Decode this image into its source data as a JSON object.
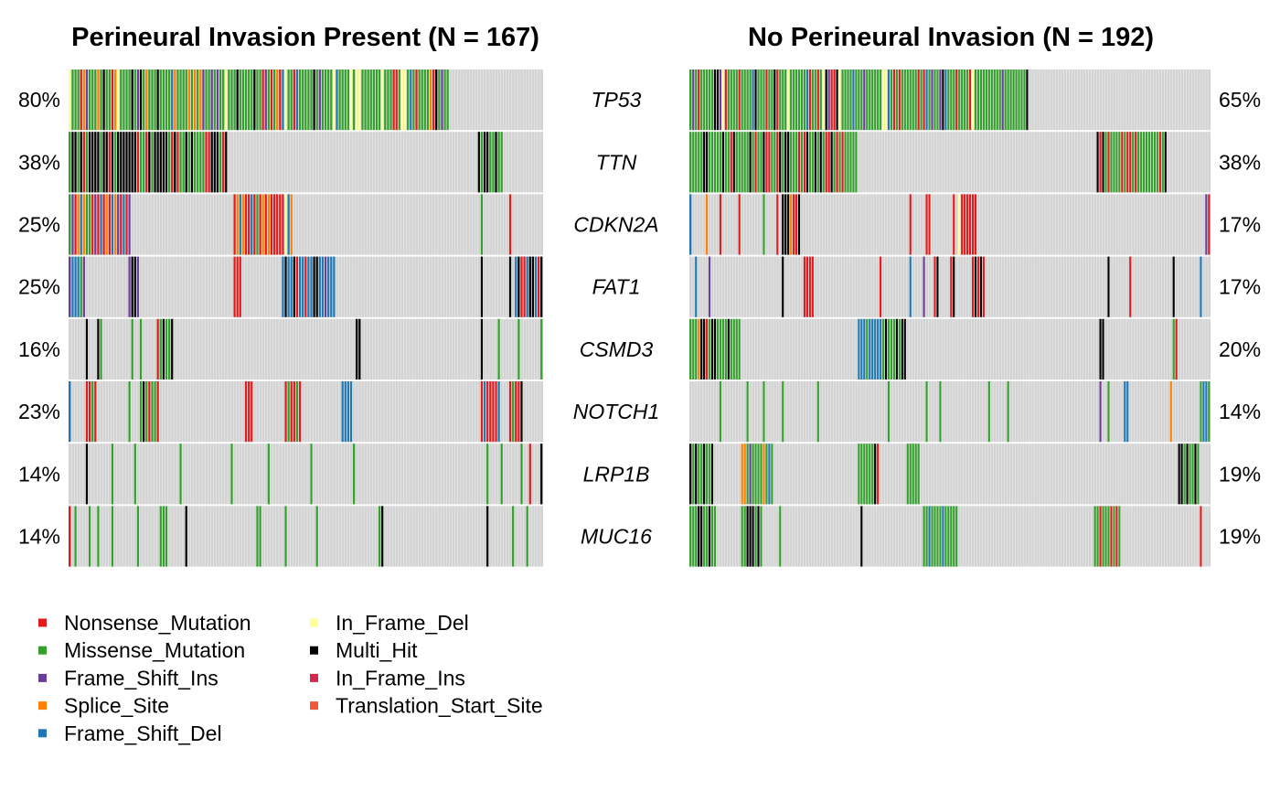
{
  "chart_data": {
    "type": "heatmap",
    "genes": [
      "TP53",
      "TTN",
      "CDKN2A",
      "FAT1",
      "CSMD3",
      "NOTCH1",
      "LRP1B",
      "MUC16"
    ],
    "background_color": "#d3d3d3",
    "colors": {
      "Nonsense_Mutation": "#e31a1c",
      "Missense_Mutation": "#33a02c",
      "Frame_Shift_Ins": "#6a3d9a",
      "Splice_Site": "#ff7f00",
      "Frame_Shift_Del": "#1f78b4",
      "In_Frame_Del": "#ffff99",
      "Multi_Hit": "#000000",
      "In_Frame_Ins": "#d0284e",
      "Translation_Start_Site": "#f0583a"
    },
    "panels": [
      {
        "title": "Perineural Invasion Present (N = 167)",
        "n_samples": 167,
        "percent_labels": [
          "80%",
          "38%",
          "25%",
          "25%",
          "16%",
          "23%",
          "14%",
          "14%"
        ],
        "rows": [
          {
            "gene": "TP53",
            "segments": [
              [
                0,
                133,
                "Missense_Mutation",
                "Nonsense_Mutation|Multi_Hit|Frame_Shift_Del|Frame_Shift_Ins|Splice_Site|In_Frame_Del"
              ]
            ]
          },
          {
            "gene": "TTN",
            "segments": [
              [
                0,
                55,
                "Multi_Hit",
                "Missense_Mutation|Nonsense_Mutation"
              ],
              [
                144,
                152,
                "Multi_Hit",
                "Missense_Mutation"
              ]
            ]
          },
          {
            "gene": "CDKN2A",
            "segments": [
              [
                0,
                21,
                "Nonsense_Mutation",
                "Splice_Site|Frame_Shift_Del|Missense_Mutation|Frame_Shift_Ins"
              ],
              [
                58,
                78,
                "Nonsense_Mutation",
                "In_Frame_Del|Frame_Shift_Del|Splice_Site|Missense_Mutation"
              ],
              [
                145,
                145,
                "Missense_Mutation",
                ""
              ],
              [
                155,
                155,
                "Nonsense_Mutation",
                ""
              ]
            ]
          },
          {
            "gene": "FAT1",
            "segments": [
              [
                0,
                5,
                "Frame_Shift_Del",
                "Frame_Shift_Ins|Missense_Mutation"
              ],
              [
                21,
                24,
                "Frame_Shift_Ins",
                "Multi_Hit"
              ],
              [
                58,
                60,
                "Nonsense_Mutation",
                "Multi_Hit"
              ],
              [
                75,
                93,
                "Frame_Shift_Del",
                "Frame_Shift_Ins|Nonsense_Mutation|Multi_Hit"
              ],
              [
                145,
                145,
                "Multi_Hit",
                ""
              ],
              [
                155,
                155,
                "Multi_Hit",
                ""
              ],
              [
                157,
                166,
                "Multi_Hit",
                "Frame_Shift_Del|Nonsense_Mutation"
              ]
            ]
          },
          {
            "gene": "CSMD3",
            "segments": [
              [
                6,
                6,
                "Multi_Hit",
                ""
              ],
              [
                10,
                11,
                "Missense_Mutation",
                "Multi_Hit"
              ],
              [
                22,
                22,
                "Missense_Mutation",
                ""
              ],
              [
                25,
                25,
                "Missense_Mutation",
                ""
              ],
              [
                31,
                36,
                "Missense_Mutation",
                "Multi_Hit|Nonsense_Mutation"
              ],
              [
                101,
                102,
                "Multi_Hit",
                ""
              ],
              [
                145,
                145,
                "Multi_Hit",
                ""
              ],
              [
                151,
                151,
                "Missense_Mutation",
                ""
              ],
              [
                158,
                158,
                "Missense_Mutation",
                ""
              ],
              [
                166,
                166,
                "Missense_Mutation",
                ""
              ]
            ]
          },
          {
            "gene": "NOTCH1",
            "segments": [
              [
                0,
                0,
                "Frame_Shift_Del",
                ""
              ],
              [
                6,
                9,
                "Missense_Mutation",
                "Nonsense_Mutation"
              ],
              [
                21,
                21,
                "Missense_Mutation",
                ""
              ],
              [
                25,
                31,
                "Missense_Mutation",
                "Multi_Hit|Nonsense_Mutation"
              ],
              [
                62,
                64,
                "Nonsense_Mutation",
                "Frame_Shift_Del"
              ],
              [
                76,
                81,
                "Nonsense_Mutation",
                "Frame_Shift_Ins|Missense_Mutation"
              ],
              [
                96,
                99,
                "Frame_Shift_Del",
                "Missense_Mutation"
              ],
              [
                145,
                151,
                "Nonsense_Mutation",
                "Frame_Shift_Del|Missense_Mutation"
              ],
              [
                155,
                159,
                "Nonsense_Mutation",
                "Missense_Mutation|Multi_Hit"
              ]
            ]
          },
          {
            "gene": "LRP1B",
            "segments": [
              [
                6,
                6,
                "Multi_Hit",
                ""
              ],
              [
                15,
                15,
                "Missense_Mutation",
                ""
              ],
              [
                23,
                23,
                "Missense_Mutation",
                ""
              ],
              [
                39,
                39,
                "Missense_Mutation",
                ""
              ],
              [
                57,
                57,
                "Missense_Mutation",
                ""
              ],
              [
                70,
                70,
                "Missense_Mutation",
                ""
              ],
              [
                85,
                85,
                "Missense_Mutation",
                ""
              ],
              [
                100,
                100,
                "Missense_Mutation",
                ""
              ],
              [
                147,
                147,
                "Missense_Mutation",
                ""
              ],
              [
                152,
                152,
                "Missense_Mutation",
                ""
              ],
              [
                159,
                159,
                "Missense_Mutation",
                ""
              ],
              [
                162,
                162,
                "Nonsense_Mutation",
                ""
              ],
              [
                166,
                166,
                "Multi_Hit",
                ""
              ]
            ]
          },
          {
            "gene": "MUC16",
            "segments": [
              [
                0,
                0,
                "Nonsense_Mutation",
                ""
              ],
              [
                2,
                2,
                "Missense_Mutation",
                ""
              ],
              [
                7,
                7,
                "Missense_Mutation",
                ""
              ],
              [
                10,
                10,
                "Missense_Mutation",
                ""
              ],
              [
                15,
                15,
                "Missense_Mutation",
                ""
              ],
              [
                24,
                24,
                "Missense_Mutation",
                ""
              ],
              [
                32,
                34,
                "Missense_Mutation",
                ""
              ],
              [
                41,
                41,
                "Multi_Hit",
                ""
              ],
              [
                66,
                67,
                "Missense_Mutation",
                ""
              ],
              [
                76,
                76,
                "Missense_Mutation",
                ""
              ],
              [
                87,
                87,
                "Missense_Mutation",
                ""
              ],
              [
                109,
                110,
                "Multi_Hit",
                "Missense_Mutation"
              ],
              [
                147,
                147,
                "Multi_Hit",
                ""
              ],
              [
                156,
                156,
                "Missense_Mutation",
                ""
              ],
              [
                161,
                161,
                "Missense_Mutation",
                ""
              ]
            ]
          }
        ]
      },
      {
        "title": "No Perineural Invasion (N = 192)",
        "n_samples": 192,
        "percent_labels": [
          "65%",
          "38%",
          "17%",
          "17%",
          "20%",
          "14%",
          "19%",
          "19%"
        ],
        "rows": [
          {
            "gene": "TP53",
            "segments": [
              [
                0,
                124,
                "Missense_Mutation",
                "Multi_Hit|Nonsense_Mutation|Frame_Shift_Del|Frame_Shift_Ins|In_Frame_Del"
              ]
            ]
          },
          {
            "gene": "TTN",
            "segments": [
              [
                0,
                61,
                "Missense_Mutation",
                "Multi_Hit|Nonsense_Mutation"
              ],
              [
                150,
                175,
                "Missense_Mutation",
                "Multi_Hit|Nonsense_Mutation"
              ]
            ]
          },
          {
            "gene": "CDKN2A",
            "segments": [
              [
                0,
                0,
                "Frame_Shift_Del",
                ""
              ],
              [
                6,
                6,
                "Splice_Site",
                ""
              ],
              [
                11,
                11,
                "Nonsense_Mutation",
                ""
              ],
              [
                18,
                18,
                "Nonsense_Mutation",
                ""
              ],
              [
                27,
                27,
                "Missense_Mutation",
                ""
              ],
              [
                32,
                32,
                "Nonsense_Mutation",
                ""
              ],
              [
                34,
                40,
                "Multi_Hit",
                "Nonsense_Mutation|Frame_Shift_Del|Missense_Mutation|Splice_Site"
              ],
              [
                81,
                81,
                "Nonsense_Mutation",
                ""
              ],
              [
                87,
                88,
                "Nonsense_Mutation",
                ""
              ],
              [
                97,
                97,
                "Nonsense_Mutation",
                ""
              ],
              [
                99,
                105,
                "Nonsense_Mutation",
                "Frame_Shift_Del|Splice_Site|In_Frame_Del|Frame_Shift_Ins"
              ],
              [
                190,
                191,
                "Nonsense_Mutation",
                "Frame_Shift_Ins"
              ]
            ]
          },
          {
            "gene": "FAT1",
            "segments": [
              [
                2,
                2,
                "Frame_Shift_Del",
                ""
              ],
              [
                7,
                7,
                "Frame_Shift_Ins",
                ""
              ],
              [
                34,
                34,
                "Multi_Hit",
                ""
              ],
              [
                42,
                45,
                "Nonsense_Mutation",
                ""
              ],
              [
                70,
                70,
                "Nonsense_Mutation",
                ""
              ],
              [
                81,
                81,
                "Frame_Shift_Del",
                ""
              ],
              [
                86,
                86,
                "Frame_Shift_Ins",
                ""
              ],
              [
                90,
                91,
                "Nonsense_Mutation",
                "Multi_Hit"
              ],
              [
                96,
                97,
                "Nonsense_Mutation",
                "Multi_Hit"
              ],
              [
                104,
                108,
                "Nonsense_Mutation",
                "Multi_Hit"
              ],
              [
                154,
                154,
                "Multi_Hit",
                ""
              ],
              [
                162,
                162,
                "Nonsense_Mutation",
                ""
              ],
              [
                178,
                178,
                "Multi_Hit",
                ""
              ],
              [
                188,
                188,
                "Frame_Shift_Del",
                ""
              ],
              [
                192,
                192,
                "Nonsense_Mutation",
                ""
              ]
            ]
          },
          {
            "gene": "CSMD3",
            "segments": [
              [
                0,
                18,
                "Missense_Mutation",
                "Splice_Site|Nonsense_Mutation|Multi_Hit"
              ],
              [
                62,
                79,
                "Missense_Mutation",
                "Multi_Hit|Frame_Shift_Del"
              ],
              [
                151,
                152,
                "Multi_Hit",
                ""
              ],
              [
                178,
                178,
                "Missense_Mutation",
                ""
              ],
              [
                179,
                179,
                "Nonsense_Mutation",
                ""
              ]
            ]
          },
          {
            "gene": "NOTCH1",
            "segments": [
              [
                11,
                11,
                "Missense_Mutation",
                ""
              ],
              [
                21,
                21,
                "Missense_Mutation",
                ""
              ],
              [
                27,
                27,
                "Missense_Mutation",
                ""
              ],
              [
                34,
                34,
                "Missense_Mutation",
                ""
              ],
              [
                47,
                47,
                "Missense_Mutation",
                ""
              ],
              [
                73,
                73,
                "Missense_Mutation",
                ""
              ],
              [
                87,
                87,
                "Missense_Mutation",
                ""
              ],
              [
                92,
                92,
                "Missense_Mutation",
                ""
              ],
              [
                110,
                110,
                "Missense_Mutation",
                ""
              ],
              [
                117,
                117,
                "Missense_Mutation",
                ""
              ],
              [
                151,
                151,
                "Frame_Shift_Ins",
                ""
              ],
              [
                154,
                154,
                "Missense_Mutation",
                ""
              ],
              [
                160,
                161,
                "Frame_Shift_Del",
                "Multi_Hit"
              ],
              [
                177,
                177,
                "Splice_Site",
                ""
              ],
              [
                188,
                191,
                "Missense_Mutation",
                "Nonsense_Mutation|Frame_Shift_Del"
              ]
            ]
          },
          {
            "gene": "LRP1B",
            "segments": [
              [
                0,
                8,
                "Multi_Hit",
                "Missense_Mutation"
              ],
              [
                19,
                30,
                "Missense_Mutation",
                "Nonsense_Mutation|Splice_Site|Frame_Shift_Del|Frame_Shift_Ins|Multi_Hit"
              ],
              [
                62,
                69,
                "Missense_Mutation",
                "Multi_Hit|Nonsense_Mutation"
              ],
              [
                80,
                84,
                "Missense_Mutation",
                ""
              ],
              [
                180,
                187,
                "Missense_Mutation",
                "Multi_Hit"
              ]
            ]
          },
          {
            "gene": "MUC16",
            "segments": [
              [
                0,
                9,
                "Missense_Mutation",
                "Multi_Hit"
              ],
              [
                19,
                26,
                "Missense_Mutation",
                "Multi_Hit|Nonsense_Mutation"
              ],
              [
                33,
                33,
                "Missense_Mutation",
                ""
              ],
              [
                63,
                63,
                "Multi_Hit",
                ""
              ],
              [
                86,
                98,
                "Missense_Mutation",
                "Frame_Shift_Del"
              ],
              [
                149,
                158,
                "Missense_Mutation",
                "Nonsense_Mutation"
              ],
              [
                188,
                188,
                "Nonsense_Mutation",
                ""
              ]
            ]
          }
        ]
      }
    ],
    "legend": {
      "columns": [
        [
          "Nonsense_Mutation",
          "Missense_Mutation",
          "Frame_Shift_Ins",
          "Splice_Site",
          "Frame_Shift_Del"
        ],
        [
          "In_Frame_Del",
          "Multi_Hit",
          "In_Frame_Ins",
          "Translation_Start_Site"
        ]
      ]
    }
  }
}
